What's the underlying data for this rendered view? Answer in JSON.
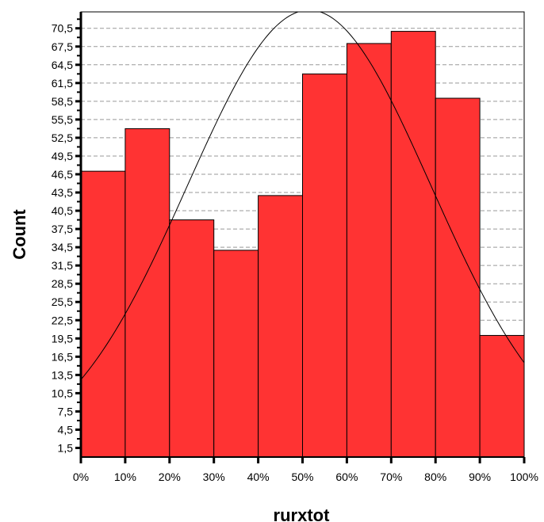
{
  "chart_data": {
    "type": "bar",
    "title": "",
    "xlabel": "rurxtot",
    "ylabel": "Count",
    "x_tick_labels": [
      "0%",
      "10%",
      "20%",
      "30%",
      "40%",
      "50%",
      "60%",
      "70%",
      "80%",
      "90%",
      "100%"
    ],
    "y_tick_labels": [
      "1,5",
      "4,5",
      "7,5",
      "10,5",
      "13,5",
      "16,5",
      "19,5",
      "22,5",
      "25,5",
      "28,5",
      "31,5",
      "34,5",
      "37,5",
      "40,5",
      "43,5",
      "46,5",
      "49,5",
      "52,5",
      "55,5",
      "58,5",
      "61,5",
      "64,5",
      "67,5",
      "70,5"
    ],
    "y_ticks": [
      1.5,
      4.5,
      7.5,
      10.5,
      13.5,
      16.5,
      19.5,
      22.5,
      25.5,
      28.5,
      31.5,
      34.5,
      37.5,
      40.5,
      43.5,
      46.5,
      49.5,
      52.5,
      55.5,
      58.5,
      61.5,
      64.5,
      67.5,
      70.5
    ],
    "ylim": [
      0,
      73.2
    ],
    "xlim": [
      0,
      100
    ],
    "bins": [
      {
        "from": 0,
        "to": 10,
        "value": 47
      },
      {
        "from": 10,
        "to": 20,
        "value": 54
      },
      {
        "from": 20,
        "to": 30,
        "value": 39
      },
      {
        "from": 30,
        "to": 40,
        "value": 34
      },
      {
        "from": 40,
        "to": 50,
        "value": 43
      },
      {
        "from": 50,
        "to": 60,
        "value": 63
      },
      {
        "from": 60,
        "to": 70,
        "value": 68
      },
      {
        "from": 70,
        "to": 80,
        "value": 70
      },
      {
        "from": 80,
        "to": 90,
        "value": 59
      },
      {
        "from": 90,
        "to": 100,
        "value": 20
      }
    ],
    "normal_curve": {
      "mean": 51.5,
      "sd": 27.5,
      "peak": 73.5
    },
    "grid": true,
    "bar_color": "#ff3333",
    "bar_edge_color": "#000000",
    "grid_color": "#999999"
  }
}
